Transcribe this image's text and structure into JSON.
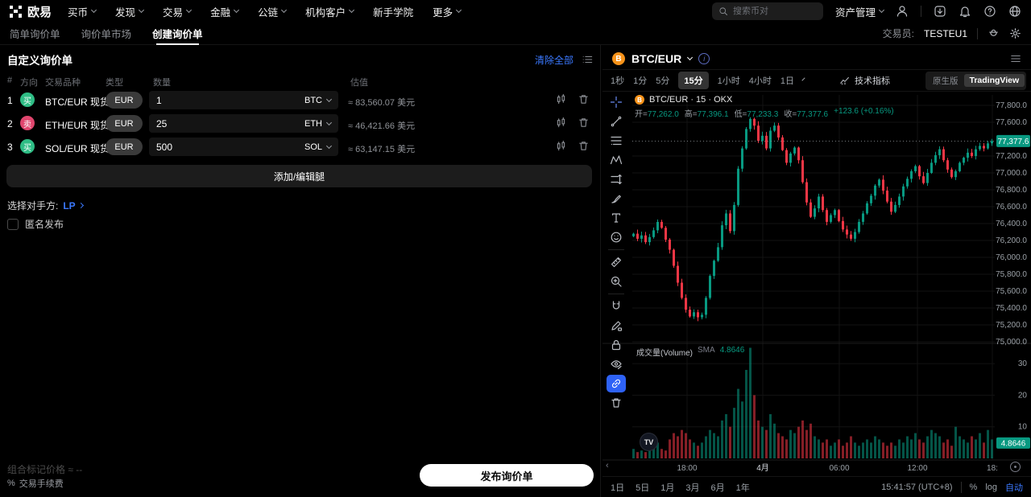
{
  "topnav": {
    "brand": "欧易",
    "items": [
      {
        "label": "买币"
      },
      {
        "label": "发现"
      },
      {
        "label": "交易"
      },
      {
        "label": "金融"
      },
      {
        "label": "公链"
      },
      {
        "label": "机构客户"
      },
      {
        "label": "新手学院"
      },
      {
        "label": "更多"
      }
    ],
    "search_placeholder": "搜索币对",
    "assets_label": "资产管理"
  },
  "subnav": {
    "tabs": [
      {
        "label": "简单询价单"
      },
      {
        "label": "询价单市场"
      },
      {
        "label": "创建询价单"
      }
    ],
    "trader_label": "交易员:",
    "trader_value": "TESTEU1"
  },
  "rfq": {
    "title": "自定义询价单",
    "clear_all": "清除全部",
    "columns": [
      "#",
      "方向",
      "交易品种",
      "类型",
      "数量",
      "估值"
    ],
    "rows": [
      {
        "index": "1",
        "side": "买",
        "pair": "BTC/EUR 现货",
        "currency_pill": "EUR",
        "amount": "1",
        "unit": "BTC",
        "valuation": "≈ 83,560.07 美元"
      },
      {
        "index": "2",
        "side": "卖",
        "pair": "ETH/EUR 现货",
        "currency_pill": "EUR",
        "amount": "25",
        "unit": "ETH",
        "valuation": "≈ 46,421.66 美元"
      },
      {
        "index": "3",
        "side": "买",
        "pair": "SOL/EUR 现货",
        "currency_pill": "EUR",
        "amount": "500",
        "unit": "SOL",
        "valuation": "≈ 63,147.15 美元"
      }
    ],
    "add_edit_legs": "添加/编辑腿",
    "counterparty_label": "选择对手方:",
    "counterparty_value": "LP",
    "anonymous_label": "匿名发布",
    "mark_price_label": "组合标记价格",
    "mark_price_value": "≈ --",
    "fee_prefix": "%",
    "fee_label": "交易手续费",
    "publish_button": "发布询价单"
  },
  "chart": {
    "symbol": "BTC/EUR",
    "coin_glyph": "B",
    "legend_title": "BTC/EUR · 15 · OKX",
    "ohlc": {
      "open_label": "开=",
      "open": "77,262.0",
      "high_label": "高=",
      "high": "77,396.1",
      "low_label": "低=",
      "low": "77,233.3",
      "close_label": "收=",
      "close": "77,377.6",
      "change": "+123.6 (+0.16%)"
    },
    "intervals": [
      "1秒",
      "1分",
      "5分",
      "15分",
      "1小时",
      "4小时",
      "1日"
    ],
    "active_interval": "15分",
    "indicators_label": "技术指标",
    "mode_native": "原生版",
    "mode_tv": "TradingView",
    "price_axis": [
      "77,800.0",
      "77,600.0",
      "77,200.0",
      "77,000.0",
      "76,800.0",
      "76,600.0",
      "76,400.0",
      "76,200.0",
      "76,000.0",
      "75,800.0",
      "75,600.0",
      "75,400.0",
      "75,200.0",
      "75,000.0"
    ],
    "last_price_badge": "77,377.6",
    "volume_label": "成交量(Volume)",
    "volume_sma_label": "SMA",
    "volume_sma_value": "4.8646",
    "volume_axis": [
      "30",
      "20",
      "10"
    ],
    "volume_badge": "4.8646",
    "time_axis": [
      "18:00",
      "4月",
      "06:00",
      "12:00",
      "18:"
    ],
    "range_buttons": [
      "1日",
      "5日",
      "1月",
      "3月",
      "6月",
      "1年"
    ],
    "clock": "15:41:57 (UTC+8)",
    "scale_percent": "%",
    "scale_log": "log",
    "scale_auto": "自动",
    "tv_logo": "TV"
  },
  "chart_data": {
    "type": "candlestick+volume",
    "symbol": "BTC/EUR",
    "interval": "15m",
    "exchange": "OKX",
    "price_range": [
      75000,
      77900
    ],
    "last_price": 77377.6,
    "last_candle": {
      "open": 77262.0,
      "high": 77396.1,
      "low": 77233.3,
      "close": 77377.6,
      "change": 123.6,
      "change_pct": 0.16
    },
    "volume_sma": 4.8646,
    "closes": [
      76280,
      76220,
      76260,
      76180,
      76240,
      76320,
      76420,
      76350,
      76210,
      76090,
      75900,
      75700,
      75520,
      75380,
      75300,
      75350,
      75290,
      75320,
      75520,
      75780,
      75960,
      76120,
      76380,
      76520,
      76310,
      76620,
      77050,
      77290,
      77520,
      77640,
      77560,
      77380,
      77440,
      77290,
      77500,
      77560,
      77420,
      77270,
      77120,
      77230,
      77300,
      77150,
      76890,
      76650,
      76480,
      76580,
      76720,
      76560,
      76420,
      76500,
      76560,
      76430,
      76330,
      76270,
      76220,
      76300,
      76420,
      76520,
      76640,
      76730,
      76850,
      76920,
      76790,
      76660,
      76540,
      76620,
      76720,
      76840,
      76930,
      77020,
      77080,
      76960,
      76880,
      77000,
      77120,
      77210,
      77280,
      77150,
      77040,
      76950,
      77020,
      77120,
      77180,
      77240,
      77200,
      77280,
      77320,
      77290,
      77350,
      77377.6
    ],
    "volumes": [
      3,
      2,
      2.5,
      2,
      3,
      4,
      5,
      3,
      2.5,
      6,
      8,
      7,
      9,
      8,
      6,
      5,
      4,
      5,
      7,
      9,
      8,
      7,
      12,
      14,
      10,
      16,
      22,
      18,
      28,
      35,
      20,
      12,
      10,
      9,
      14,
      11,
      8,
      7,
      6,
      9,
      8,
      10,
      12,
      9,
      11,
      7,
      6,
      5,
      6,
      4,
      5,
      6,
      4,
      5,
      7,
      5,
      4,
      5,
      6,
      5,
      7,
      6,
      5,
      4,
      5,
      4,
      6,
      5,
      7,
      6,
      8,
      6,
      5,
      7,
      9,
      8,
      7,
      5,
      6,
      4,
      10,
      7,
      6,
      5,
      7,
      6,
      8,
      5,
      9,
      6
    ]
  },
  "colors": {
    "accent_blue": "#3b79ff",
    "up_green": "#089981",
    "down_red": "#f23645",
    "buy_green": "#2ebd85",
    "sell_red": "#e0466e",
    "bitcoin_orange": "#f7931a",
    "badge_green": "#089981"
  }
}
